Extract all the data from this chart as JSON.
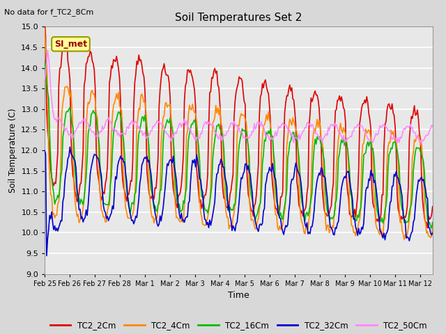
{
  "title": "Soil Temperatures Set 2",
  "top_left_note": "No data for f_TC2_8Cm",
  "ylabel": "Soil Temperature (C)",
  "xlabel": "Time",
  "annotation": "SI_met",
  "ylim": [
    9.0,
    15.0
  ],
  "yticks": [
    9.0,
    9.5,
    10.0,
    10.5,
    11.0,
    11.5,
    12.0,
    12.5,
    13.0,
    13.5,
    14.0,
    14.5,
    15.0
  ],
  "xtick_labels": [
    "Feb 25",
    "Feb 26",
    "Feb 27",
    "Feb 28",
    "Mar 1",
    "Mar 2",
    "Mar 3",
    "Mar 4",
    "Mar 5",
    "Mar 6",
    "Mar 7",
    "Mar 8",
    "Mar 9",
    "Mar 10",
    "Mar 11",
    "Mar 12"
  ],
  "series_colors": {
    "TC2_2Cm": "#dd0000",
    "TC2_4Cm": "#ff8800",
    "TC2_16Cm": "#00bb00",
    "TC2_32Cm": "#0000cc",
    "TC2_50Cm": "#ff88ff"
  },
  "background_color": "#d8d8d8",
  "plot_bg_color": "#e8e8e8",
  "grid_color": "#ffffff",
  "legend_bg": "#ffff99",
  "legend_border": "#999900",
  "annotation_color": "#990000"
}
